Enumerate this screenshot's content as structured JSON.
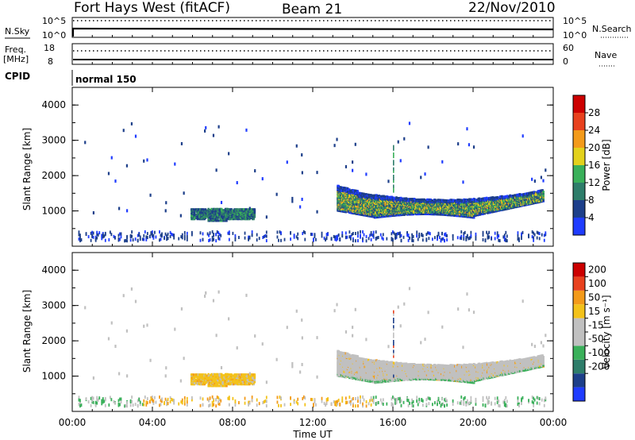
{
  "header": {
    "station": "Fort Hays West (fitACF)",
    "beam": "Beam 21",
    "date": "22/Nov/2010"
  },
  "control_panels": {
    "nsky": {
      "label": "N.Sky",
      "ticks": [
        "10^5",
        "10^0"
      ]
    },
    "nsearch": {
      "label": "N.Search",
      "ticks": [
        "10^5",
        "10^0"
      ]
    },
    "freq": {
      "label_top": "Freq.",
      "label_bottom": "[MHz]",
      "ticks": [
        "18",
        "8"
      ]
    },
    "nave": {
      "label": "Nave",
      "ticks": [
        "60",
        "0"
      ]
    },
    "cpid": {
      "label": "CPID",
      "value": "normal 150"
    }
  },
  "chart_data": [
    {
      "type": "heatmap",
      "name": "power",
      "ylabel": "Slant Range [km]",
      "yticks": [
        "1000",
        "2000",
        "3000",
        "4000"
      ],
      "ylim": [
        0,
        4500
      ],
      "colorbar_label": "Power [dB]",
      "colorbar_ticks": [
        "4",
        "8",
        "12",
        "16",
        "20",
        "24",
        "28"
      ],
      "colors": [
        "#1f3cff",
        "#1d3f8a",
        "#2e7d6a",
        "#3ab05a",
        "#e3d11c",
        "#f39a1a",
        "#e8411e",
        "#cc0000"
      ],
      "regions": [
        {
          "x_hours": [
            5.9,
            9.1
          ],
          "range_km": [
            750,
            1050
          ],
          "level": "mixed-green"
        },
        {
          "x_hours": [
            13.2,
            23.5
          ],
          "range_km": [
            800,
            1700
          ],
          "level": "blue-edge-yellow-core"
        },
        {
          "x_hours": [
            0.0,
            24.0
          ],
          "range_km": [
            150,
            350
          ],
          "level": "blue-sparse"
        }
      ]
    },
    {
      "type": "heatmap",
      "name": "velocity",
      "ylabel": "Slant Range [km]",
      "yticks": [
        "1000",
        "2000",
        "3000",
        "4000"
      ],
      "ylim": [
        0,
        4500
      ],
      "colorbar_label": "Velocity [m s⁻¹]",
      "colorbar_ticks": [
        "200",
        "100",
        "50",
        "15",
        "-15",
        "-50",
        "-100",
        "-200"
      ],
      "colors": [
        "#1f3cff",
        "#1d3f8a",
        "#2e7d6a",
        "#3ab05a",
        "#c0c0c0",
        "#c0c0c0",
        "#f3c21a",
        "#f39a1a",
        "#e8411e",
        "#cc0000"
      ],
      "regions": [
        {
          "x_hours": [
            5.9,
            9.1
          ],
          "range_km": [
            750,
            1050
          ],
          "level": "yellow-orange"
        },
        {
          "x_hours": [
            13.2,
            23.5
          ],
          "range_km": [
            800,
            1700
          ],
          "level": "grey-green"
        },
        {
          "x_hours": [
            0.0,
            24.0
          ],
          "range_km": [
            150,
            350
          ],
          "level": "orange-sparse"
        }
      ]
    }
  ],
  "xaxis": {
    "label": "Time UT",
    "ticks": [
      "00:00",
      "04:00",
      "08:00",
      "12:00",
      "16:00",
      "20:00",
      "00:00"
    ],
    "xlim_hours": [
      0,
      24
    ]
  }
}
